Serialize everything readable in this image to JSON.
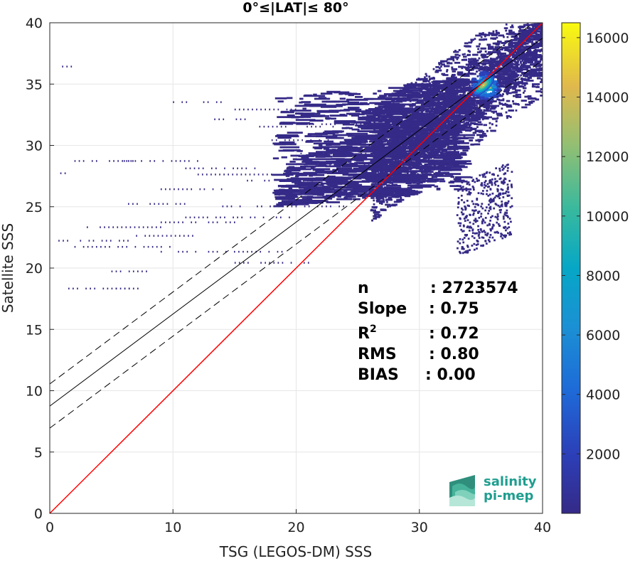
{
  "chart_data": {
    "type": "heatmap",
    "title": "0°≤|LAT|≤ 80°",
    "xlabel": "TSG (LEGOS-DM) SSS",
    "ylabel": "Satellite SSS",
    "xlim": [
      0,
      40
    ],
    "ylim": [
      0,
      40
    ],
    "x_ticks": [
      "0",
      "10",
      "20",
      "30",
      "40"
    ],
    "y_ticks": [
      "0",
      "5",
      "10",
      "15",
      "20",
      "25",
      "30",
      "35",
      "40"
    ],
    "grid": true,
    "colorbar": {
      "min": 0,
      "max": 16500,
      "ticks": [
        "2000",
        "4000",
        "6000",
        "8000",
        "10000",
        "12000",
        "14000",
        "16000"
      ],
      "colormap": "parula"
    },
    "density_peak": {
      "x": 35.2,
      "y": 34.9,
      "count": 16000
    },
    "lines": {
      "one_to_one": {
        "slope": 1.0,
        "intercept": 0.0,
        "color": "#ff0000"
      },
      "regression": {
        "slope": 0.75,
        "intercept": 8.75,
        "color": "#000000",
        "style": "solid"
      },
      "regression_upper": {
        "slope": 0.75,
        "intercept": 10.55,
        "color": "#000000",
        "style": "dashed"
      },
      "regression_lower": {
        "slope": 0.75,
        "intercept": 6.95,
        "color": "#000000",
        "style": "dashed"
      }
    },
    "stats": [
      {
        "label": "n",
        "value": ": 2723574"
      },
      {
        "label": "Slope",
        "value": ": 0.75"
      },
      {
        "label": "R",
        "sup": "2",
        "value": ": 0.72"
      },
      {
        "label": "RMS",
        "value": ": 0.80"
      },
      {
        "label": "BIAS",
        "value": ": 0.00"
      }
    ]
  },
  "logo": {
    "line1": "salinity",
    "line2": "pi-mep"
  }
}
